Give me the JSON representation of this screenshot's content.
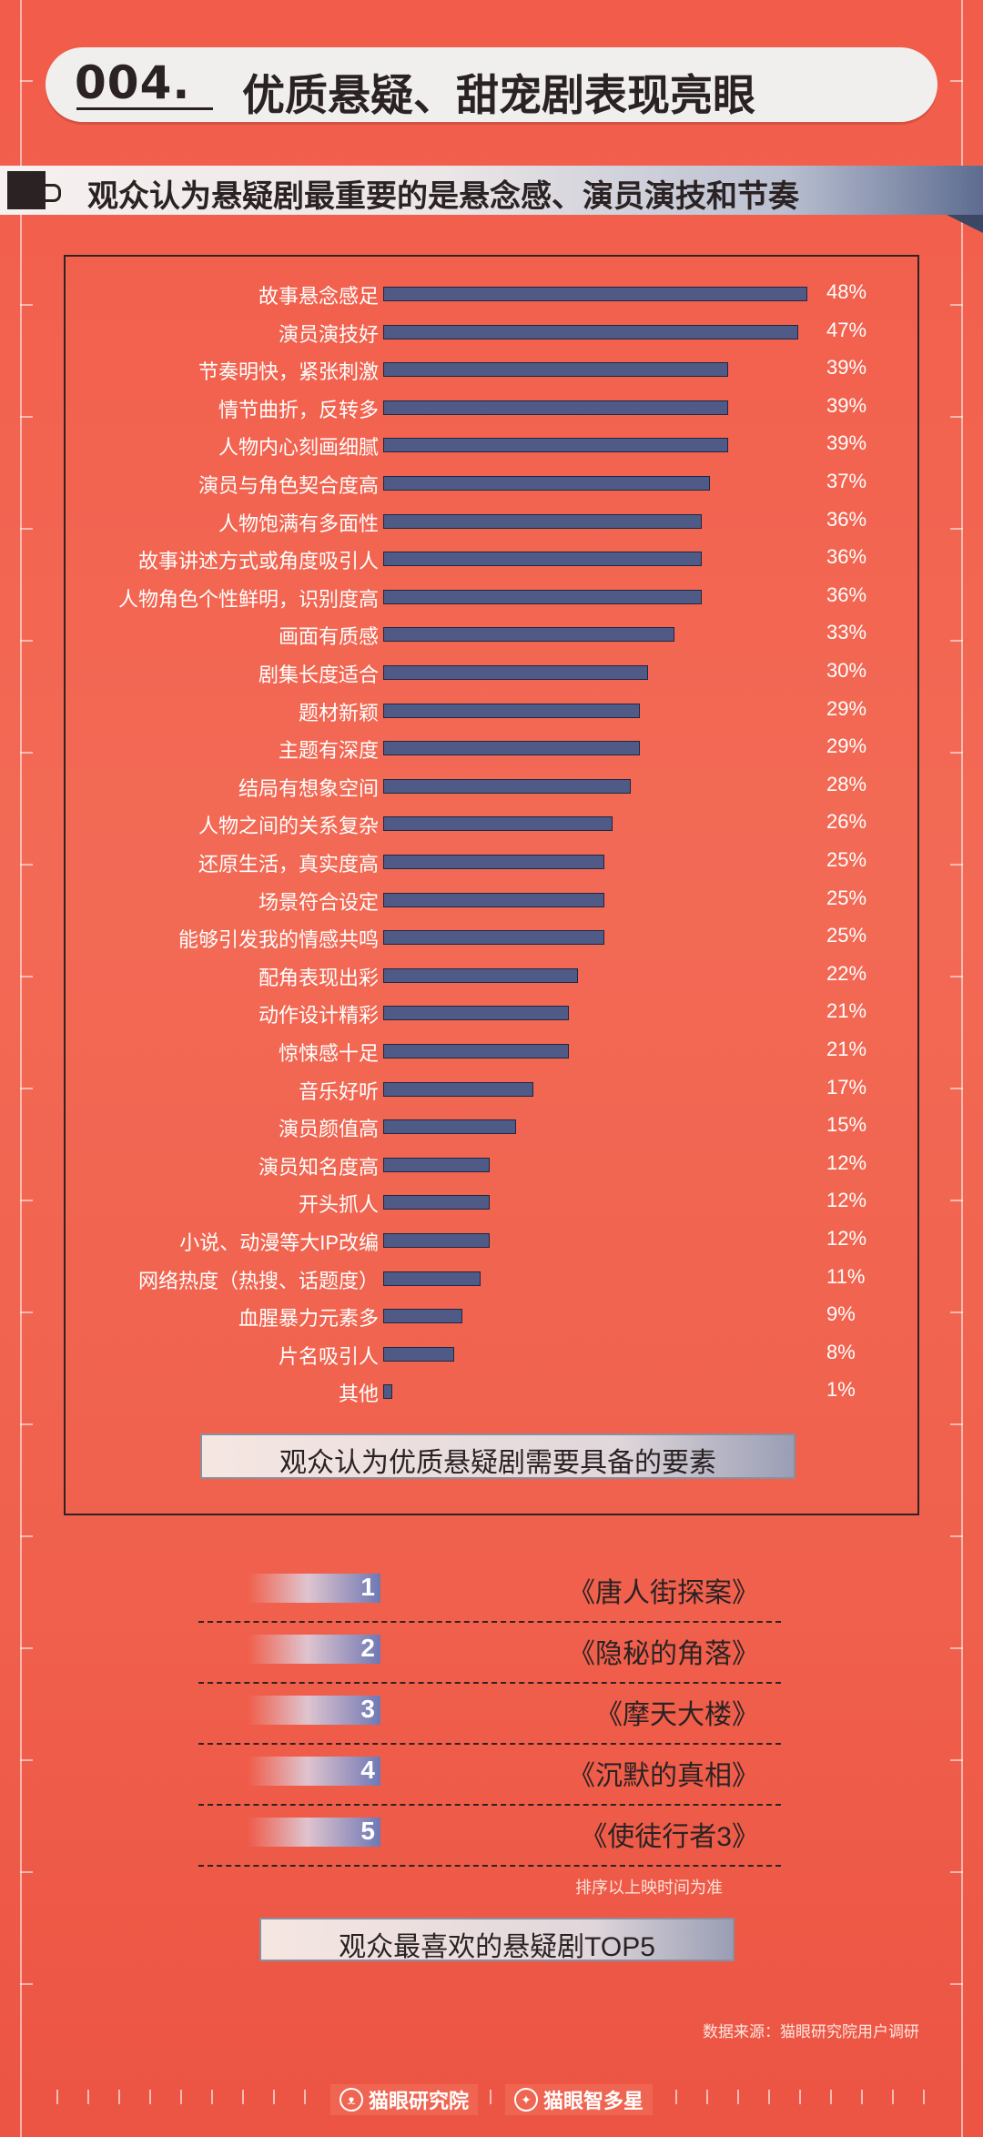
{
  "header": {
    "number": "004.",
    "title": "优质悬疑、甜宠剧表现亮眼",
    "subtitle": "观众认为悬疑剧最重要的是悬念感、演员演技和节奏"
  },
  "chart_data": {
    "type": "bar",
    "orientation": "horizontal",
    "title": "观众认为优质悬疑剧需要具备的要素",
    "categories": [
      "故事悬念感足",
      "演员演技好",
      "节奏明快，紧张刺激",
      "情节曲折，反转多",
      "人物内心刻画细腻",
      "演员与角色契合度高",
      "人物饱满有多面性",
      "故事讲述方式或角度吸引人",
      "人物角色个性鲜明，识别度高",
      "画面有质感",
      "剧集长度适合",
      "题材新颖",
      "主题有深度",
      "结局有想象空间",
      "人物之间的关系复杂",
      "还原生活，真实度高",
      "场景符合设定",
      "能够引发我的情感共鸣",
      "配角表现出彩",
      "动作设计精彩",
      "惊悚感十足",
      "音乐好听",
      "演员颜值高",
      "演员知名度高",
      "开头抓人",
      "小说、动漫等大IP改编",
      "网络热度（热搜、话题度）",
      "血腥暴力元素多",
      "片名吸引人",
      "其他"
    ],
    "values": [
      48,
      47,
      39,
      39,
      39,
      37,
      36,
      36,
      36,
      33,
      30,
      29,
      29,
      28,
      26,
      25,
      25,
      25,
      22,
      21,
      21,
      17,
      15,
      12,
      12,
      12,
      11,
      9,
      8,
      1
    ],
    "value_labels": [
      "48%",
      "47%",
      "39%",
      "39%",
      "39%",
      "37%",
      "36%",
      "36%",
      "36%",
      "33%",
      "30%",
      "29%",
      "29%",
      "28%",
      "26%",
      "25%",
      "25%",
      "25%",
      "22%",
      "21%",
      "21%",
      "17%",
      "15%",
      "12%",
      "12%",
      "12%",
      "11%",
      "9%",
      "8%",
      "1%"
    ],
    "xlim": [
      0,
      48
    ],
    "grid": false,
    "bar_color": "#4f5b86"
  },
  "top5": {
    "title": "观众最喜欢的悬疑剧TOP5",
    "items": [
      {
        "rank": "1",
        "name": "《唐人街探案》"
      },
      {
        "rank": "2",
        "name": "《隐秘的角落》"
      },
      {
        "rank": "3",
        "name": "《摩天大楼》"
      },
      {
        "rank": "4",
        "name": "《沉默的真相》"
      },
      {
        "rank": "5",
        "name": "《使徒行者3》"
      }
    ],
    "note": "排序以上映时间为准"
  },
  "source": "数据来源：猫眼研究院用户调研",
  "footer": {
    "brand1": "猫眼研究院",
    "brand2": "猫眼智多星"
  },
  "colors": {
    "background": "#f26a55",
    "bar": "#4f5b86",
    "dark": "#2a2223"
  }
}
